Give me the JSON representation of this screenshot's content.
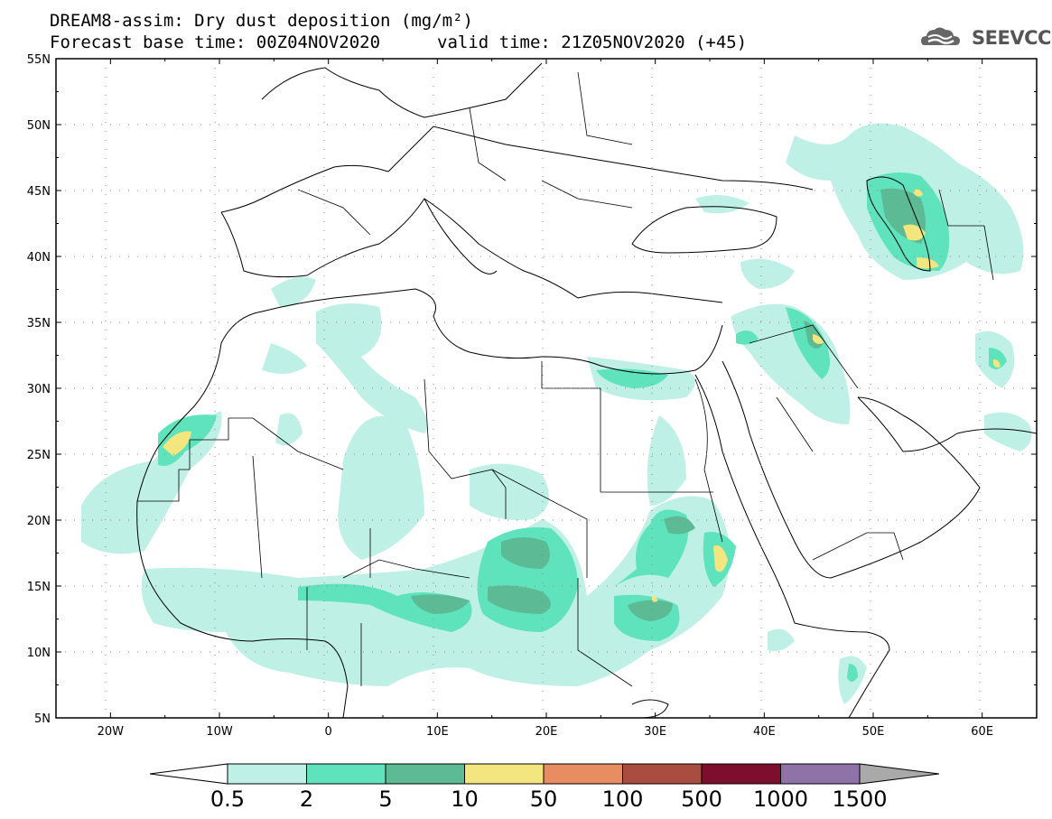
{
  "title": {
    "line1": "DREAM8-assim: Dry dust deposition (mg/m²)",
    "base": "Forecast base time: 00Z04NOV2020",
    "valid": "valid time: 21Z05NOV2020 (+45)"
  },
  "logo": {
    "text": "SEEVCCC",
    "icon": "cloud-icon"
  },
  "map": {
    "lon_range": [
      -25,
      65
    ],
    "lat_range": [
      5,
      55
    ],
    "lat_labels": [
      "55N",
      "50N",
      "45N",
      "40N",
      "35N",
      "30N",
      "25N",
      "20N",
      "15N",
      "10N",
      "5N"
    ],
    "lat_values": [
      55,
      50,
      45,
      40,
      35,
      30,
      25,
      20,
      15,
      10,
      5
    ],
    "lon_labels": [
      "20W",
      "10W",
      "0",
      "10E",
      "20E",
      "30E",
      "40E",
      "50E",
      "60E"
    ],
    "lon_values": [
      -20,
      -10,
      0,
      10,
      20,
      30,
      40,
      50,
      60
    ],
    "grid": "dotted"
  },
  "colorbar": {
    "labels": [
      "0.5",
      "2",
      "5",
      "10",
      "50",
      "100",
      "500",
      "1000",
      "1500"
    ],
    "colors": [
      "#bff0e6",
      "#5fe3bd",
      "#5cba95",
      "#f4e67e",
      "#e88c62",
      "#a84d40",
      "#7e0e2e",
      "#8f72a8"
    ],
    "under_color": "#ffffff",
    "over_color": "#a9a9a9"
  }
}
